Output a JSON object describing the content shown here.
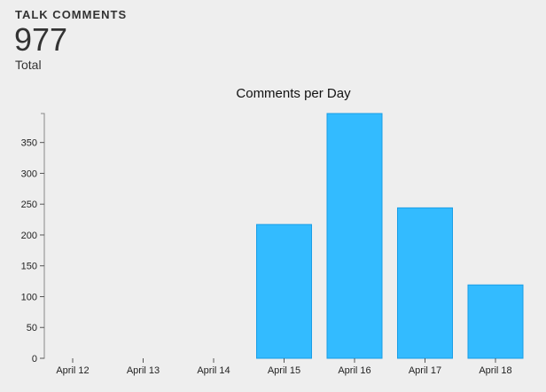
{
  "stat": {
    "label": "TALK COMMENTS",
    "value": "977",
    "caption": "Total"
  },
  "chart_data": {
    "type": "bar",
    "title": "Comments per Day",
    "categories": [
      "April 12",
      "April 13",
      "April 14",
      "April 15",
      "April 16",
      "April 17",
      "April 18"
    ],
    "values": [
      0,
      0,
      0,
      217,
      397,
      244,
      119
    ],
    "ylim": [
      0,
      397
    ],
    "yticks": [
      0,
      50,
      100,
      150,
      200,
      250,
      300,
      350
    ],
    "xlabel": "",
    "ylabel": "",
    "grid": false,
    "bar_color": "#33bbff",
    "bar_stroke": "#1a9ee6"
  }
}
